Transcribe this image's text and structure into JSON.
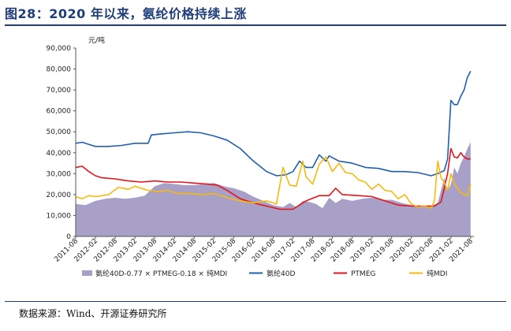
{
  "figure": {
    "title": "图28：2020 年以来，氨纶价格持续上涨",
    "source": "数据来源：Wind、开源证券研究所"
  },
  "chart_data": {
    "type": "line",
    "unit": "元/吨",
    "ylim": [
      0,
      90000
    ],
    "yticks": [
      0,
      10000,
      20000,
      30000,
      40000,
      50000,
      60000,
      70000,
      80000,
      90000
    ],
    "ytick_labels": [
      "0",
      "10,000",
      "20,000",
      "30,000",
      "40,000",
      "50,000",
      "60,000",
      "70,000",
      "80,000",
      "90,000"
    ],
    "xlim": [
      "2011-08",
      "2021-09"
    ],
    "xtick_labels": [
      "2011-08",
      "2012-02",
      "2012-08",
      "2013-02",
      "2013-08",
      "2014-02",
      "2014-08",
      "2015-02",
      "2015-08",
      "2016-02",
      "2016-08",
      "2017-02",
      "2017-08",
      "2018-02",
      "2018-08",
      "2019-02",
      "2019-08",
      "2020-02",
      "2020-08",
      "2021-02",
      "2021-08"
    ],
    "legend_position": "bottom",
    "series": [
      {
        "name": "氨纶40D-0.77 × PTMEG-0.18 × 纯MDI",
        "type": "area",
        "color": "#a9a0c8",
        "points": [
          [
            "2011-08",
            15500
          ],
          [
            "2011-11",
            15000
          ],
          [
            "2012-02",
            17000
          ],
          [
            "2012-05",
            18000
          ],
          [
            "2012-08",
            18500
          ],
          [
            "2012-11",
            18000
          ],
          [
            "2013-02",
            18500
          ],
          [
            "2013-05",
            19500
          ],
          [
            "2013-08",
            24000
          ],
          [
            "2013-11",
            25500
          ],
          [
            "2014-02",
            25000
          ],
          [
            "2014-05",
            24500
          ],
          [
            "2014-08",
            24500
          ],
          [
            "2014-11",
            25000
          ],
          [
            "2015-02",
            25500
          ],
          [
            "2015-05",
            24000
          ],
          [
            "2015-08",
            23000
          ],
          [
            "2015-11",
            21500
          ],
          [
            "2016-02",
            19000
          ],
          [
            "2016-05",
            17000
          ],
          [
            "2016-08",
            15000
          ],
          [
            "2016-11",
            14000
          ],
          [
            "2017-01",
            16000
          ],
          [
            "2017-03",
            14000
          ],
          [
            "2017-05",
            17000
          ],
          [
            "2017-07",
            16500
          ],
          [
            "2017-09",
            15500
          ],
          [
            "2017-11",
            13500
          ],
          [
            "2018-01",
            18500
          ],
          [
            "2018-03",
            16000
          ],
          [
            "2018-05",
            18000
          ],
          [
            "2018-08",
            17000
          ],
          [
            "2018-11",
            18000
          ],
          [
            "2019-02",
            18500
          ],
          [
            "2019-05",
            17500
          ],
          [
            "2019-08",
            17500
          ],
          [
            "2019-11",
            16000
          ],
          [
            "2020-02",
            15000
          ],
          [
            "2020-05",
            14500
          ],
          [
            "2020-08",
            14500
          ],
          [
            "2020-10",
            16000
          ],
          [
            "2020-12",
            28000
          ],
          [
            "2021-01",
            22000
          ],
          [
            "2021-02",
            25000
          ],
          [
            "2021-03",
            33000
          ],
          [
            "2021-04",
            30000
          ],
          [
            "2021-05",
            35000
          ],
          [
            "2021-06",
            38000
          ],
          [
            "2021-07",
            42000
          ],
          [
            "2021-08",
            45000
          ]
        ]
      },
      {
        "name": "氨纶40D",
        "type": "line",
        "color": "#1f5fb0",
        "points": [
          [
            "2011-08",
            44500
          ],
          [
            "2011-10",
            45000
          ],
          [
            "2011-12",
            44000
          ],
          [
            "2012-02",
            43000
          ],
          [
            "2012-06",
            43000
          ],
          [
            "2012-10",
            43500
          ],
          [
            "2013-02",
            44500
          ],
          [
            "2013-06",
            44500
          ],
          [
            "2013-07",
            48500
          ],
          [
            "2013-10",
            49000
          ],
          [
            "2014-02",
            49500
          ],
          [
            "2014-06",
            50000
          ],
          [
            "2014-10",
            49500
          ],
          [
            "2015-02",
            48000
          ],
          [
            "2015-06",
            46000
          ],
          [
            "2015-10",
            42000
          ],
          [
            "2016-02",
            36000
          ],
          [
            "2016-06",
            31000
          ],
          [
            "2016-09",
            29000
          ],
          [
            "2016-12",
            29500
          ],
          [
            "2017-02",
            31000
          ],
          [
            "2017-04",
            36000
          ],
          [
            "2017-06",
            33000
          ],
          [
            "2017-08",
            33000
          ],
          [
            "2017-10",
            39000
          ],
          [
            "2017-12",
            36000
          ],
          [
            "2018-01",
            38500
          ],
          [
            "2018-04",
            36000
          ],
          [
            "2018-08",
            35000
          ],
          [
            "2018-12",
            33000
          ],
          [
            "2019-04",
            32500
          ],
          [
            "2019-08",
            31000
          ],
          [
            "2019-12",
            31000
          ],
          [
            "2020-04",
            30500
          ],
          [
            "2020-08",
            29000
          ],
          [
            "2020-10",
            30000
          ],
          [
            "2020-12",
            31500
          ],
          [
            "2021-01",
            37000
          ],
          [
            "2021-02",
            65000
          ],
          [
            "2021-03",
            63000
          ],
          [
            "2021-04",
            63000
          ],
          [
            "2021-05",
            67000
          ],
          [
            "2021-06",
            70000
          ],
          [
            "2021-07",
            76000
          ],
          [
            "2021-08",
            79000
          ]
        ]
      },
      {
        "name": "PTMEG",
        "type": "line",
        "color": "#e3151b",
        "points": [
          [
            "2011-08",
            33000
          ],
          [
            "2011-10",
            33500
          ],
          [
            "2011-12",
            31000
          ],
          [
            "2012-02",
            29000
          ],
          [
            "2012-04",
            28000
          ],
          [
            "2012-08",
            27500
          ],
          [
            "2012-12",
            26500
          ],
          [
            "2013-04",
            26000
          ],
          [
            "2013-08",
            26500
          ],
          [
            "2013-12",
            26000
          ],
          [
            "2014-04",
            26000
          ],
          [
            "2014-08",
            25500
          ],
          [
            "2014-12",
            25000
          ],
          [
            "2015-03",
            24500
          ],
          [
            "2015-06",
            22000
          ],
          [
            "2015-10",
            18000
          ],
          [
            "2016-02",
            16000
          ],
          [
            "2016-06",
            14500
          ],
          [
            "2016-10",
            13000
          ],
          [
            "2017-02",
            13000
          ],
          [
            "2017-04",
            15000
          ],
          [
            "2017-06",
            17000
          ],
          [
            "2017-10",
            19500
          ],
          [
            "2018-01",
            19500
          ],
          [
            "2018-03",
            23000
          ],
          [
            "2018-05",
            20000
          ],
          [
            "2018-10",
            19500
          ],
          [
            "2019-02",
            19000
          ],
          [
            "2019-06",
            17000
          ],
          [
            "2019-10",
            15000
          ],
          [
            "2020-02",
            14500
          ],
          [
            "2020-06",
            14500
          ],
          [
            "2020-09",
            14500
          ],
          [
            "2020-11",
            16500
          ],
          [
            "2021-01",
            30000
          ],
          [
            "2021-02",
            42000
          ],
          [
            "2021-03",
            38000
          ],
          [
            "2021-04",
            37500
          ],
          [
            "2021-05",
            40000
          ],
          [
            "2021-06",
            38000
          ],
          [
            "2021-07",
            37000
          ],
          [
            "2021-08",
            37000
          ]
        ]
      },
      {
        "name": "纯MDI",
        "type": "line",
        "color": "#f5b90f",
        "points": [
          [
            "2011-08",
            19000
          ],
          [
            "2011-10",
            18000
          ],
          [
            "2011-12",
            19500
          ],
          [
            "2012-02",
            19000
          ],
          [
            "2012-06",
            20000
          ],
          [
            "2012-09",
            23500
          ],
          [
            "2012-12",
            22500
          ],
          [
            "2013-02",
            24000
          ],
          [
            "2013-06",
            22000
          ],
          [
            "2013-09",
            21500
          ],
          [
            "2013-12",
            22000
          ],
          [
            "2014-03",
            20500
          ],
          [
            "2014-07",
            20500
          ],
          [
            "2014-10",
            20000
          ],
          [
            "2015-02",
            20500
          ],
          [
            "2015-06",
            18500
          ],
          [
            "2015-10",
            17000
          ],
          [
            "2016-02",
            16000
          ],
          [
            "2016-06",
            17000
          ],
          [
            "2016-09",
            15500
          ],
          [
            "2016-11",
            33000
          ],
          [
            "2017-01",
            24500
          ],
          [
            "2017-03",
            24000
          ],
          [
            "2017-05",
            36000
          ],
          [
            "2017-06",
            28500
          ],
          [
            "2017-08",
            25000
          ],
          [
            "2017-10",
            34500
          ],
          [
            "2017-12",
            38000
          ],
          [
            "2018-02",
            31000
          ],
          [
            "2018-04",
            35000
          ],
          [
            "2018-06",
            30500
          ],
          [
            "2018-08",
            30000
          ],
          [
            "2018-10",
            27000
          ],
          [
            "2018-12",
            26000
          ],
          [
            "2019-02",
            22500
          ],
          [
            "2019-04",
            25000
          ],
          [
            "2019-06",
            22000
          ],
          [
            "2019-08",
            21500
          ],
          [
            "2019-10",
            18000
          ],
          [
            "2019-12",
            20000
          ],
          [
            "2020-02",
            15500
          ],
          [
            "2020-04",
            14000
          ],
          [
            "2020-06",
            14500
          ],
          [
            "2020-08",
            13500
          ],
          [
            "2020-09",
            17000
          ],
          [
            "2020-10",
            36000
          ],
          [
            "2020-11",
            28000
          ],
          [
            "2020-12",
            26000
          ],
          [
            "2021-01",
            22000
          ],
          [
            "2021-02",
            30000
          ],
          [
            "2021-03",
            25000
          ],
          [
            "2021-04",
            23000
          ],
          [
            "2021-05",
            21000
          ],
          [
            "2021-06",
            20000
          ],
          [
            "2021-07",
            19500
          ],
          [
            "2021-08",
            25000
          ]
        ]
      }
    ]
  }
}
